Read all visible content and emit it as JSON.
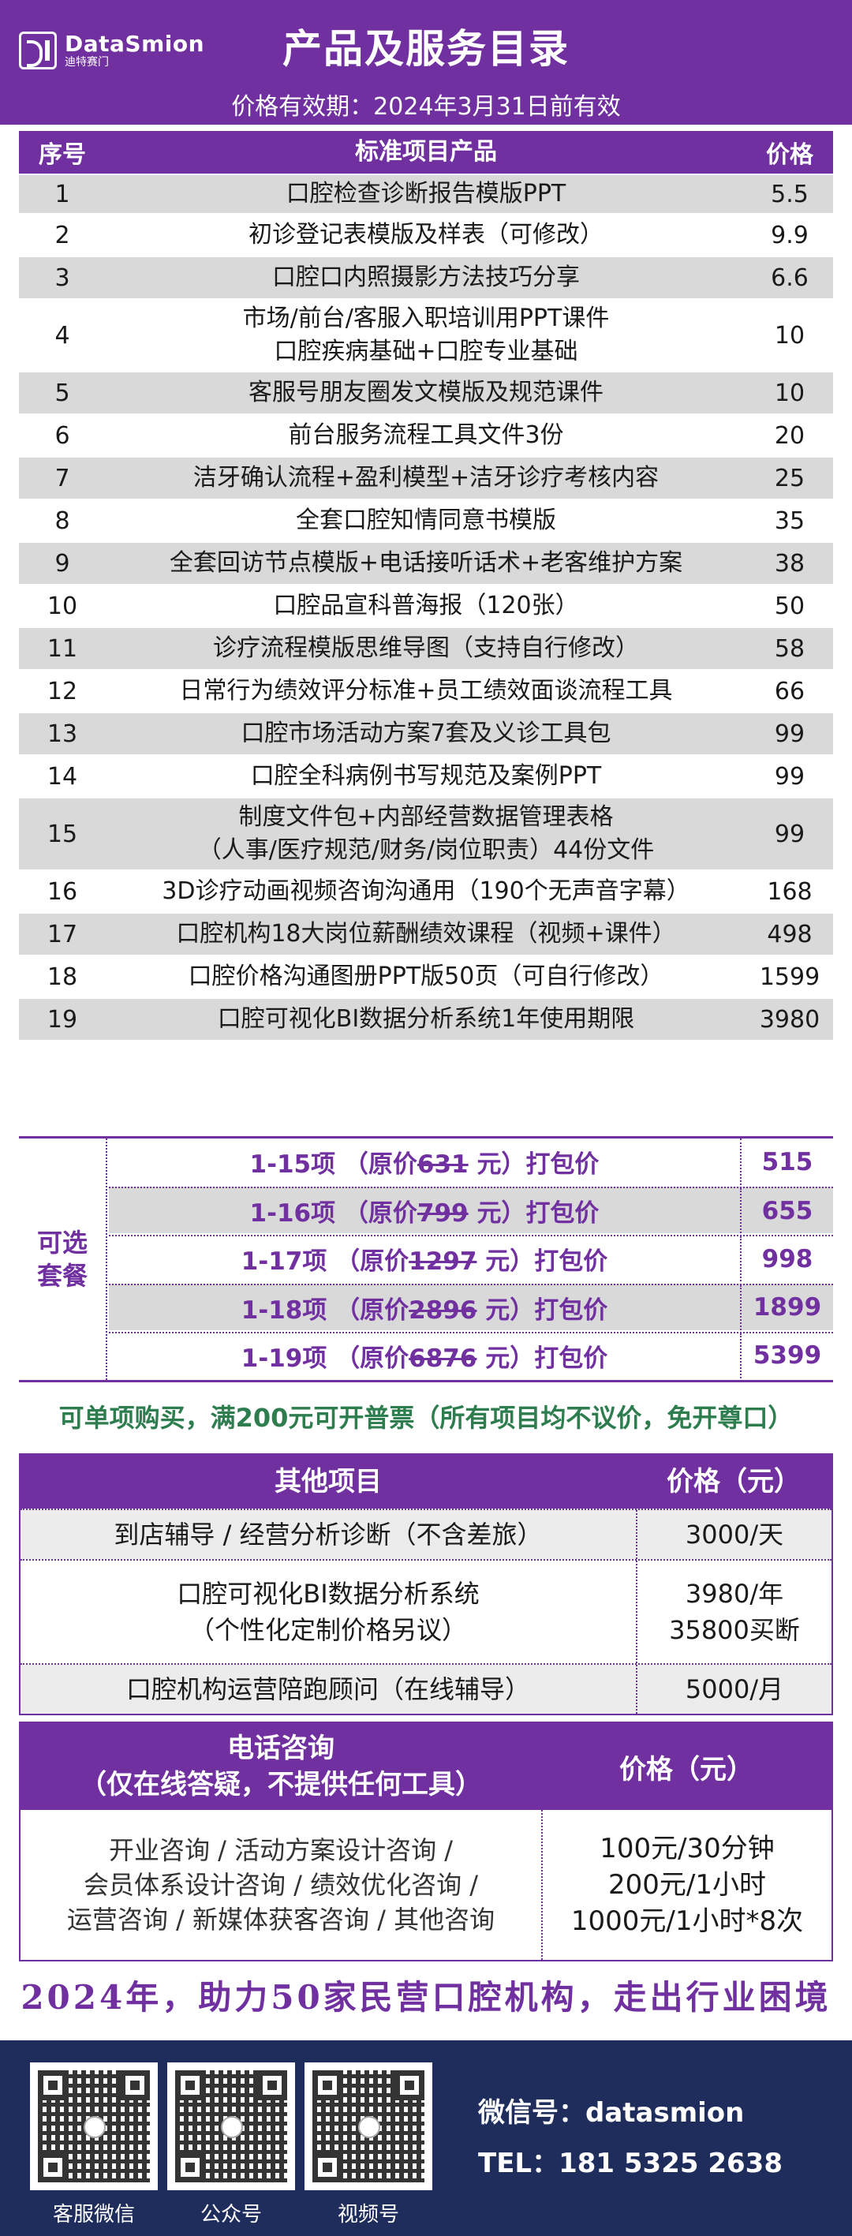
{
  "brand": {
    "name_en": "DataSmion",
    "name_cn": "迪特赛门"
  },
  "header": {
    "title": "产品及服务目录",
    "validity": "价格有效期：2024年3月31日前有效"
  },
  "main_table": {
    "headers": [
      "序号",
      "标准项目产品",
      "价格"
    ],
    "rows": [
      {
        "no": "1",
        "name": [
          "口腔检查诊断报告模版PPT"
        ],
        "price": "5.5"
      },
      {
        "no": "2",
        "name": [
          "初诊登记表模版及样表（可修改）"
        ],
        "price": "9.9"
      },
      {
        "no": "3",
        "name": [
          "口腔口内照摄影方法技巧分享"
        ],
        "price": "6.6"
      },
      {
        "no": "4",
        "name": [
          "市场/前台/客服入职培训用PPT课件",
          "口腔疾病基础+口腔专业基础"
        ],
        "price": "10"
      },
      {
        "no": "5",
        "name": [
          "客服号朋友圈发文模版及规范课件"
        ],
        "price": "10"
      },
      {
        "no": "6",
        "name": [
          "前台服务流程工具文件3份"
        ],
        "price": "20"
      },
      {
        "no": "7",
        "name": [
          "洁牙确认流程+盈利模型+洁牙诊疗考核内容"
        ],
        "price": "25"
      },
      {
        "no": "8",
        "name": [
          "全套口腔知情同意书模版"
        ],
        "price": "35"
      },
      {
        "no": "9",
        "name": [
          "全套回访节点模版+电话接听话术+老客维护方案"
        ],
        "price": "38"
      },
      {
        "no": "10",
        "name": [
          "口腔品宣科普海报（120张）"
        ],
        "price": "50"
      },
      {
        "no": "11",
        "name": [
          "诊疗流程模版思维导图（支持自行修改）"
        ],
        "price": "58"
      },
      {
        "no": "12",
        "name": [
          "日常行为绩效评分标准+员工绩效面谈流程工具"
        ],
        "price": "66"
      },
      {
        "no": "13",
        "name": [
          "口腔市场活动方案7套及义诊工具包"
        ],
        "price": "99"
      },
      {
        "no": "14",
        "name": [
          "口腔全科病例书写规范及案例PPT"
        ],
        "price": "99"
      },
      {
        "no": "15",
        "name": [
          "制度文件包+内部经营数据管理表格",
          "（人事/医疗规范/财务/岗位职责）44份文件"
        ],
        "price": "99"
      },
      {
        "no": "16",
        "name": [
          "3D诊疗动画视频咨询沟通用（190个无声音字幕）"
        ],
        "price": "168"
      },
      {
        "no": "17",
        "name": [
          "口腔机构18大岗位薪酬绩效课程（视频+课件）"
        ],
        "price": "498"
      },
      {
        "no": "18",
        "name": [
          "口腔价格沟通图册PPT版50页（可自行修改）"
        ],
        "price": "1599"
      },
      {
        "no": "19",
        "name": [
          "口腔可视化BI数据分析系统1年使用期限"
        ],
        "price": "3980"
      }
    ]
  },
  "packages": {
    "label": [
      "可选",
      "套餐"
    ],
    "rows": [
      {
        "range": "1-15项",
        "orig_prefix": "（原价",
        "orig_price": "631",
        "orig_suffix": "元）",
        "tag": "打包价",
        "price": "515"
      },
      {
        "range": "1-16项",
        "orig_prefix": "（原价",
        "orig_price": "799",
        "orig_suffix": "元）",
        "tag": "打包价",
        "price": "655"
      },
      {
        "range": "1-17项",
        "orig_prefix": "（原价",
        "orig_price": "1297",
        "orig_suffix": "元）",
        "tag": "打包价",
        "price": "998"
      },
      {
        "range": "1-18项",
        "orig_prefix": "（原价",
        "orig_price": "2896",
        "orig_suffix": "元）",
        "tag": "打包价",
        "price": "1899"
      },
      {
        "range": "1-19项",
        "orig_prefix": "（原价",
        "orig_price": "6876",
        "orig_suffix": "元）",
        "tag": "打包价",
        "price": "5399"
      }
    ]
  },
  "notice": "可单项购买，满200元可开普票（所有项目均不议价，免开尊口）",
  "other_table": {
    "headers": [
      "其他项目",
      "价格（元）"
    ],
    "rows": [
      {
        "name": [
          "到店辅导 / 经营分析诊断（不含差旅）"
        ],
        "price": [
          "3000/天"
        ]
      },
      {
        "name": [
          "口腔可视化BI数据分析系统",
          "（个性化定制价格另议）"
        ],
        "price": [
          "3980/年",
          "35800买断"
        ]
      },
      {
        "name": [
          "口腔机构运营陪跑顾问（在线辅导）"
        ],
        "price": [
          "5000/月"
        ]
      }
    ]
  },
  "phone_table": {
    "header_title": [
      "电话咨询",
      "（仅在线答疑，不提供任何工具）"
    ],
    "header_price": "价格（元）",
    "items": [
      "开业咨询 / 活动方案设计咨询 /",
      "会员体系设计咨询 / 绩效优化咨询 /",
      "运营咨询 / 新媒体获客咨询 / 其他咨询"
    ],
    "prices": [
      "100元/30分钟",
      "200元/1小时",
      "1000元/1小时*8次"
    ]
  },
  "slogan": "2024年，助力50家民营口腔机构，走出行业困境",
  "footer": {
    "qr_captions": [
      "客服微信",
      "公众号",
      "视频号"
    ],
    "wechat_label": "微信号：",
    "wechat": "datasmion",
    "tel_label": "TEL：",
    "tel": "181 5325 2638"
  },
  "colors": {
    "brand_purple": "#7030a0",
    "footer_navy": "#1f2d5c",
    "notice_green": "#2e7d4f",
    "row_shade": "#d9d9d9"
  }
}
